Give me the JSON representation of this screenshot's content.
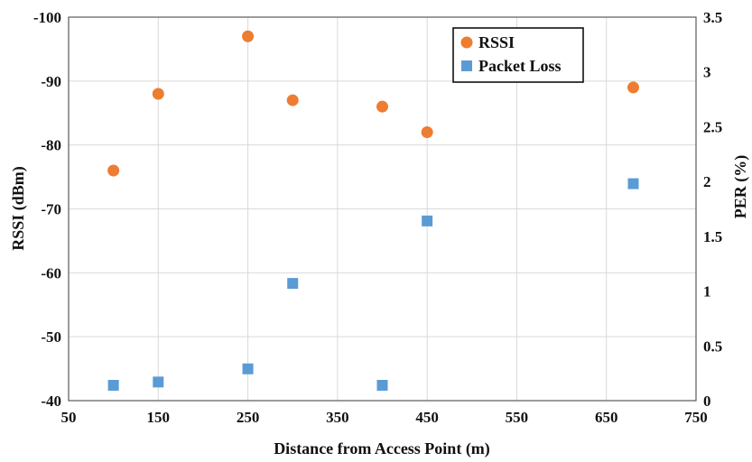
{
  "chart_data": {
    "type": "scatter",
    "xlabel": "Distance from Access Point (m)",
    "ylabel_left": "RSSI (dBm)",
    "ylabel_right": "PER (%)",
    "x_ticks": [
      "50",
      "150",
      "250",
      "350",
      "450",
      "550",
      "650",
      "750"
    ],
    "y_left_ticks": [
      "-40",
      "-50",
      "-60",
      "-70",
      "-80",
      "-90",
      "-100"
    ],
    "y_right_ticks": [
      "0",
      "0.5",
      "1",
      "1.5",
      "2",
      "2.5",
      "3",
      "3.5"
    ],
    "xlim": [
      50,
      750
    ],
    "ylim_left": [
      -40,
      -100
    ],
    "ylim_right": [
      0,
      3.5
    ],
    "grid": true,
    "legend_position": "top-right",
    "series": [
      {
        "name": "RSSI",
        "axis": "left",
        "marker": "circle",
        "color": "#ED7D31",
        "points": [
          {
            "x": 100,
            "y": -76
          },
          {
            "x": 150,
            "y": -88
          },
          {
            "x": 250,
            "y": -97
          },
          {
            "x": 300,
            "y": -87
          },
          {
            "x": 400,
            "y": -86
          },
          {
            "x": 450,
            "y": -82
          },
          {
            "x": 680,
            "y": -89
          }
        ]
      },
      {
        "name": "Packet Loss",
        "axis": "right",
        "marker": "square",
        "color": "#5B9BD5",
        "points": [
          {
            "x": 100,
            "y": 0.14
          },
          {
            "x": 150,
            "y": 0.17
          },
          {
            "x": 250,
            "y": 0.29
          },
          {
            "x": 300,
            "y": 1.07
          },
          {
            "x": 400,
            "y": 0.14
          },
          {
            "x": 450,
            "y": 1.64
          },
          {
            "x": 680,
            "y": 1.98
          }
        ]
      }
    ]
  }
}
